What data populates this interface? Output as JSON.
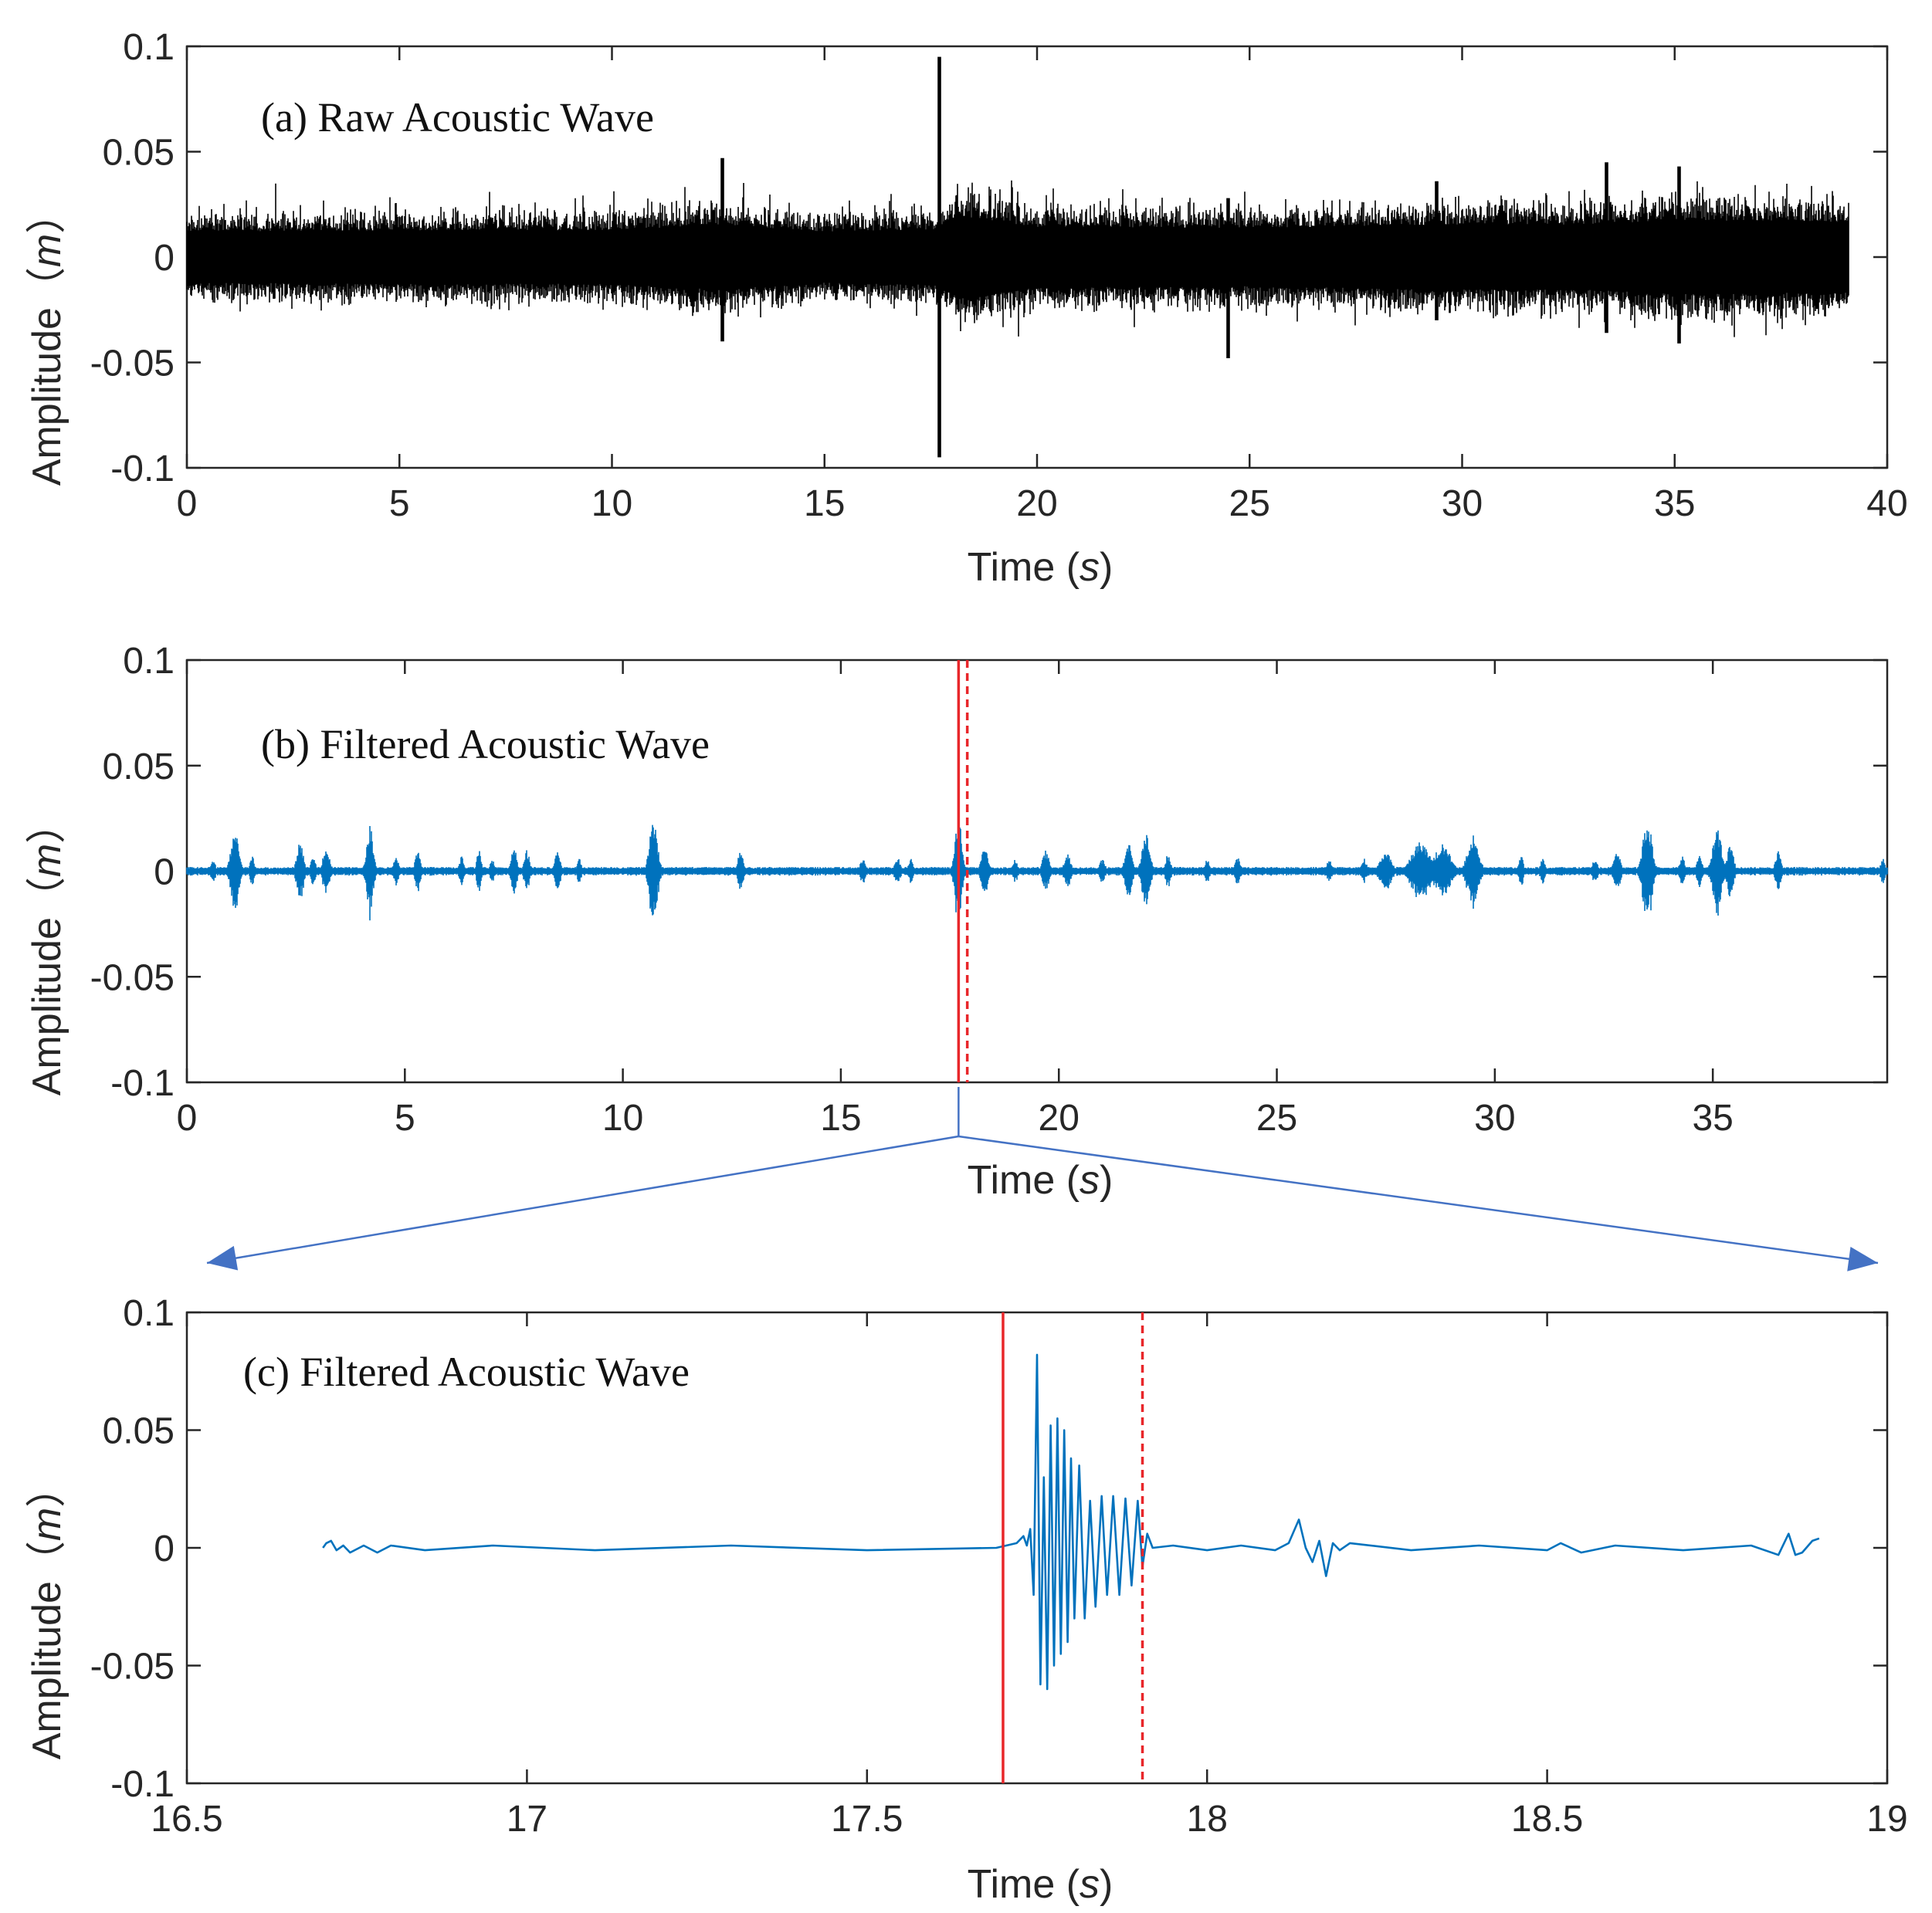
{
  "figure": {
    "colors": {
      "raw": "#000000",
      "filtered": "#0072BD",
      "marker": "#E8262A",
      "arrow": "#4472C4",
      "axis": "#262626"
    }
  },
  "chart_data": [
    {
      "id": "a",
      "type": "line",
      "title": "(a)  Raw Acoustic Wave",
      "xlabel_main": "Time (",
      "xlabel_unit": "s",
      "xlabel_close": ")",
      "ylabel_main": "Amplitude（",
      "ylabel_unit": "m",
      "ylabel_close": "）",
      "xlim": [
        0,
        40
      ],
      "ylim": [
        -0.1,
        0.1
      ],
      "x_ticks": [
        0,
        5,
        10,
        15,
        20,
        25,
        30,
        35,
        40
      ],
      "x_tick_labels": [
        "0",
        "5",
        "10",
        "15",
        "20",
        "25",
        "30",
        "35",
        "40"
      ],
      "y_ticks": [
        0.1,
        0.05,
        0,
        -0.05,
        -0.1
      ],
      "y_tick_labels": [
        "0.1",
        "0.05",
        "0",
        "-0.05",
        "-0.1"
      ],
      "series": [
        {
          "name": "raw",
          "style": "noise-envelope",
          "x_range": [
            0,
            39.1
          ],
          "baseline_amplitude": 0.02,
          "envelope": [
            [
              0,
              0.022
            ],
            [
              5,
              0.023
            ],
            [
              10,
              0.023
            ],
            [
              12.5,
              0.028
            ],
            [
              15,
              0.022
            ],
            [
              17.6,
              0.024
            ],
            [
              18.2,
              0.035
            ],
            [
              20,
              0.026
            ],
            [
              25,
              0.025
            ],
            [
              29.5,
              0.028
            ],
            [
              33,
              0.028
            ],
            [
              35,
              0.032
            ],
            [
              39.1,
              0.03
            ]
          ],
          "events": [
            {
              "x": 17.7,
              "min": -0.095,
              "max": 0.095
            },
            {
              "x": 12.6,
              "min": -0.04,
              "max": 0.047
            },
            {
              "x": 24.5,
              "min": -0.048,
              "max": 0.028
            },
            {
              "x": 29.4,
              "min": -0.03,
              "max": 0.036
            },
            {
              "x": 33.4,
              "min": -0.036,
              "max": 0.045
            },
            {
              "x": 35.1,
              "min": -0.041,
              "max": 0.043
            }
          ]
        }
      ]
    },
    {
      "id": "b",
      "type": "line",
      "title": "(b)  Filtered Acoustic Wave",
      "xlabel_main": "Time (",
      "xlabel_unit": "s",
      "xlabel_close": ")",
      "ylabel_main": "Amplitude（",
      "ylabel_unit": "m",
      "ylabel_close": "）",
      "xlim": [
        0,
        39
      ],
      "ylim": [
        -0.1,
        0.1
      ],
      "x_ticks": [
        0,
        5,
        10,
        15,
        20,
        25,
        30,
        35
      ],
      "x_tick_labels": [
        "0",
        "5",
        "10",
        "15",
        "20",
        "25",
        "30",
        "35"
      ],
      "y_ticks": [
        0.1,
        0.05,
        0,
        -0.05,
        -0.1
      ],
      "y_tick_labels": [
        "0.1",
        "0.05",
        "0",
        "-0.05",
        "-0.1"
      ],
      "series": [
        {
          "name": "filtered",
          "style": "bursts",
          "x_range": [
            0,
            39
          ],
          "baseline_amplitude": 0.002,
          "bursts": [
            [
              0.6,
              0.006,
              0.1
            ],
            [
              1.1,
              0.02,
              0.18
            ],
            [
              1.5,
              0.007,
              0.1
            ],
            [
              2.6,
              0.014,
              0.15
            ],
            [
              2.9,
              0.008,
              0.1
            ],
            [
              3.2,
              0.012,
              0.15
            ],
            [
              4.2,
              0.022,
              0.15
            ],
            [
              4.8,
              0.008,
              0.1
            ],
            [
              5.3,
              0.01,
              0.12
            ],
            [
              6.3,
              0.007,
              0.1
            ],
            [
              6.7,
              0.01,
              0.1
            ],
            [
              7.0,
              0.006,
              0.1
            ],
            [
              7.5,
              0.012,
              0.12
            ],
            [
              7.8,
              0.01,
              0.12
            ],
            [
              8.5,
              0.01,
              0.12
            ],
            [
              9.0,
              0.006,
              0.1
            ],
            [
              10.7,
              0.025,
              0.18
            ],
            [
              12.7,
              0.01,
              0.12
            ],
            [
              15.5,
              0.006,
              0.12
            ],
            [
              16.3,
              0.007,
              0.12
            ],
            [
              16.6,
              0.006,
              0.1
            ],
            [
              17.7,
              0.026,
              0.15
            ],
            [
              18.3,
              0.012,
              0.15
            ],
            [
              19.0,
              0.006,
              0.1
            ],
            [
              19.7,
              0.01,
              0.15
            ],
            [
              20.2,
              0.008,
              0.15
            ],
            [
              21.0,
              0.006,
              0.12
            ],
            [
              21.6,
              0.015,
              0.15
            ],
            [
              22.0,
              0.018,
              0.18
            ],
            [
              22.5,
              0.008,
              0.12
            ],
            [
              23.4,
              0.006,
              0.1
            ],
            [
              24.1,
              0.007,
              0.12
            ],
            [
              26.2,
              0.006,
              0.12
            ],
            [
              27.0,
              0.006,
              0.12
            ],
            [
              27.5,
              0.009,
              0.25
            ],
            [
              28.3,
              0.014,
              0.4
            ],
            [
              28.8,
              0.013,
              0.35
            ],
            [
              29.5,
              0.017,
              0.25
            ],
            [
              30.6,
              0.008,
              0.1
            ],
            [
              31.1,
              0.007,
              0.1
            ],
            [
              32.3,
              0.006,
              0.12
            ],
            [
              32.8,
              0.01,
              0.15
            ],
            [
              33.5,
              0.025,
              0.2
            ],
            [
              34.3,
              0.007,
              0.12
            ],
            [
              34.7,
              0.008,
              0.12
            ],
            [
              35.1,
              0.02,
              0.2
            ],
            [
              35.4,
              0.012,
              0.15
            ],
            [
              36.5,
              0.01,
              0.12
            ],
            [
              38.9,
              0.006,
              0.1
            ]
          ]
        }
      ],
      "markers": [
        {
          "x": 17.7,
          "style": "solid"
        },
        {
          "x": 17.9,
          "style": "dashed"
        }
      ]
    },
    {
      "id": "c",
      "type": "line",
      "title": "(c)  Filtered Acoustic Wave",
      "xlabel_main": "Time (",
      "xlabel_unit": "s",
      "xlabel_close": ")",
      "ylabel_main": "Amplitude（",
      "ylabel_unit": "m",
      "ylabel_close": "）",
      "xlim": [
        16.5,
        19
      ],
      "ylim": [
        -0.1,
        0.1
      ],
      "x_ticks": [
        16.5,
        17,
        17.5,
        18,
        18.5,
        19
      ],
      "x_tick_labels": [
        "16.5",
        "17",
        "17.5",
        "18",
        "18.5",
        "19"
      ],
      "y_ticks": [
        0.1,
        0.05,
        0,
        -0.05,
        -0.1
      ],
      "y_tick_labels": [
        "0.1",
        "0.05",
        "0",
        "-0.05",
        "-0.1"
      ],
      "series": [
        {
          "name": "filtered-zoom",
          "style": "waveform",
          "x_range": [
            16.7,
            18.9
          ],
          "points": [
            [
              16.7,
              0.0
            ],
            [
              16.705,
              0.002
            ],
            [
              16.712,
              0.003
            ],
            [
              16.72,
              -0.001
            ],
            [
              16.73,
              0.001
            ],
            [
              16.74,
              -0.002
            ],
            [
              16.76,
              0.001
            ],
            [
              16.78,
              -0.002
            ],
            [
              16.8,
              0.001
            ],
            [
              16.85,
              -0.001
            ],
            [
              16.95,
              0.001
            ],
            [
              17.1,
              -0.001
            ],
            [
              17.3,
              0.001
            ],
            [
              17.5,
              -0.001
            ],
            [
              17.69,
              0.0
            ],
            [
              17.72,
              0.002
            ],
            [
              17.73,
              0.005
            ],
            [
              17.735,
              0.001
            ],
            [
              17.74,
              0.008
            ],
            [
              17.745,
              -0.02
            ],
            [
              17.75,
              0.082
            ],
            [
              17.755,
              -0.058
            ],
            [
              17.76,
              0.03
            ],
            [
              17.765,
              -0.06
            ],
            [
              17.77,
              0.052
            ],
            [
              17.775,
              -0.05
            ],
            [
              17.78,
              0.055
            ],
            [
              17.785,
              -0.045
            ],
            [
              17.79,
              0.05
            ],
            [
              17.795,
              -0.04
            ],
            [
              17.8,
              0.038
            ],
            [
              17.805,
              -0.03
            ],
            [
              17.812,
              0.035
            ],
            [
              17.82,
              -0.03
            ],
            [
              17.828,
              0.02
            ],
            [
              17.836,
              -0.025
            ],
            [
              17.845,
              0.022
            ],
            [
              17.853,
              -0.02
            ],
            [
              17.862,
              0.022
            ],
            [
              17.871,
              -0.02
            ],
            [
              17.88,
              0.021
            ],
            [
              17.889,
              -0.016
            ],
            [
              17.898,
              0.02
            ],
            [
              17.905,
              -0.008
            ],
            [
              17.912,
              0.006
            ],
            [
              17.92,
              0.0
            ],
            [
              17.95,
              0.001
            ],
            [
              18.0,
              -0.001
            ],
            [
              18.05,
              0.001
            ],
            [
              18.1,
              -0.001
            ],
            [
              18.12,
              0.002
            ],
            [
              18.135,
              0.012
            ],
            [
              18.145,
              0.0
            ],
            [
              18.155,
              -0.006
            ],
            [
              18.165,
              0.003
            ],
            [
              18.175,
              -0.012
            ],
            [
              18.185,
              0.002
            ],
            [
              18.195,
              -0.001
            ],
            [
              18.21,
              0.002
            ],
            [
              18.3,
              -0.001
            ],
            [
              18.4,
              0.001
            ],
            [
              18.5,
              -0.001
            ],
            [
              18.52,
              0.002
            ],
            [
              18.55,
              -0.002
            ],
            [
              18.6,
              0.001
            ],
            [
              18.7,
              -0.001
            ],
            [
              18.8,
              0.001
            ],
            [
              18.84,
              -0.003
            ],
            [
              18.855,
              0.006
            ],
            [
              18.865,
              -0.003
            ],
            [
              18.875,
              -0.002
            ],
            [
              18.89,
              0.003
            ],
            [
              18.9,
              0.004
            ]
          ]
        }
      ],
      "markers": [
        {
          "x": 17.7,
          "style": "solid"
        },
        {
          "x": 17.905,
          "style": "dashed"
        }
      ]
    }
  ]
}
